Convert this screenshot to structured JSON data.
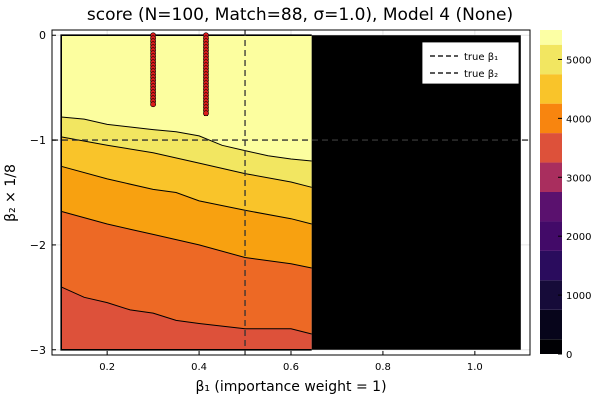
{
  "chart_data": {
    "type": "heatmap",
    "subtype": "filled-contour",
    "title": "score (N=100, Match=88, σ=1.0), Model 4 (None)",
    "xlabel": "β₁ (importance weight = 1)",
    "ylabel": "β₂ × 1/8",
    "xlim": [
      0.08,
      1.12
    ],
    "ylim": [
      -3.05,
      0.05
    ],
    "x_ticks": [
      0.2,
      0.4,
      0.6,
      0.8,
      1.0
    ],
    "x_tick_labels": [
      "0.2",
      "0.4",
      "0.6",
      "0.8",
      "1.0"
    ],
    "y_ticks": [
      0,
      -1,
      -2,
      -3
    ],
    "y_tick_labels": [
      "0",
      "−1",
      "−2",
      "−3"
    ],
    "grid": true,
    "data_extent": {
      "x": [
        0.1,
        1.1
      ],
      "y": [
        -3.0,
        0.0
      ]
    },
    "valid_region_x_max": 0.645,
    "contour_levels": [
      2750,
      3250,
      3750,
      4250,
      4750
    ],
    "contour_lines": [
      {
        "level": 4750,
        "points": [
          [
            0.1,
            -0.78
          ],
          [
            0.15,
            -0.8
          ],
          [
            0.2,
            -0.85
          ],
          [
            0.3,
            -0.9
          ],
          [
            0.35,
            -0.92
          ],
          [
            0.4,
            -0.96
          ],
          [
            0.45,
            -1.05
          ],
          [
            0.5,
            -1.1
          ],
          [
            0.55,
            -1.15
          ],
          [
            0.6,
            -1.18
          ],
          [
            0.645,
            -1.2
          ]
        ]
      },
      {
        "level": 4250,
        "points": [
          [
            0.1,
            -0.97
          ],
          [
            0.2,
            -1.05
          ],
          [
            0.3,
            -1.12
          ],
          [
            0.4,
            -1.22
          ],
          [
            0.45,
            -1.27
          ],
          [
            0.5,
            -1.32
          ],
          [
            0.6,
            -1.4
          ],
          [
            0.645,
            -1.45
          ]
        ]
      },
      {
        "level": 3750,
        "points": [
          [
            0.1,
            -1.25
          ],
          [
            0.2,
            -1.37
          ],
          [
            0.3,
            -1.47
          ],
          [
            0.35,
            -1.5
          ],
          [
            0.4,
            -1.58
          ],
          [
            0.5,
            -1.67
          ],
          [
            0.6,
            -1.75
          ],
          [
            0.645,
            -1.8
          ]
        ]
      },
      {
        "level": 3250,
        "points": [
          [
            0.1,
            -1.68
          ],
          [
            0.2,
            -1.8
          ],
          [
            0.25,
            -1.85
          ],
          [
            0.3,
            -1.9
          ],
          [
            0.4,
            -2.0
          ],
          [
            0.5,
            -2.12
          ],
          [
            0.6,
            -2.18
          ],
          [
            0.645,
            -2.22
          ]
        ]
      },
      {
        "level": 2750,
        "points": [
          [
            0.1,
            -2.4
          ],
          [
            0.15,
            -2.5
          ],
          [
            0.2,
            -2.55
          ],
          [
            0.25,
            -2.62
          ],
          [
            0.3,
            -2.65
          ],
          [
            0.35,
            -2.72
          ],
          [
            0.4,
            -2.75
          ],
          [
            0.5,
            -2.8
          ],
          [
            0.6,
            -2.8
          ],
          [
            0.645,
            -2.85
          ]
        ]
      }
    ],
    "fills": [
      {
        "between": [
          "top",
          4750
        ],
        "color": "#fcfe9f"
      },
      {
        "between": [
          4750,
          4250
        ],
        "color": "#f2e661"
      },
      {
        "between": [
          4250,
          3750
        ],
        "color": "#f9c42a"
      },
      {
        "between": [
          3750,
          3250
        ],
        "color": "#f8a110"
      },
      {
        "between": [
          3250,
          2750
        ],
        "color": "#ed6925"
      },
      {
        "between": [
          2750,
          "bottom"
        ],
        "color": "#dd513a"
      }
    ],
    "invalid_region_color": "#000000",
    "lollipops": [
      {
        "x": 0.3,
        "y_top": 0.0,
        "y_bottom": -0.67
      },
      {
        "x": 0.415,
        "y_top": 0.0,
        "y_bottom": -0.77
      }
    ],
    "lollipop_color": "#dd1c1c",
    "reference_lines": [
      {
        "orientation": "vertical",
        "value": 0.5,
        "label": "true β₁"
      },
      {
        "orientation": "horizontal",
        "value": -1.0,
        "label": "true β₂"
      }
    ],
    "legend": {
      "position": "top-right",
      "entries": [
        "true β₁",
        "true β₂"
      ]
    },
    "colorbar": {
      "min": 0,
      "max": 5500,
      "ticks": [
        0,
        1000,
        2000,
        3000,
        4000,
        5000
      ],
      "tick_labels": [
        "0",
        "1000",
        "2000",
        "3000",
        "4000",
        "5000"
      ],
      "bands": [
        {
          "from": 0,
          "to": 250,
          "color": "#000004"
        },
        {
          "from": 250,
          "to": 750,
          "color": "#07051b"
        },
        {
          "from": 750,
          "to": 1250,
          "color": "#160b39"
        },
        {
          "from": 1250,
          "to": 1750,
          "color": "#2a0c5d"
        },
        {
          "from": 1750,
          "to": 2250,
          "color": "#420a68"
        },
        {
          "from": 2250,
          "to": 2750,
          "color": "#5a116e"
        },
        {
          "from": 2750,
          "to": 3250,
          "color": "#a92e5e"
        },
        {
          "from": 3250,
          "to": 3750,
          "color": "#dd513a"
        },
        {
          "from": 3750,
          "to": 4250,
          "color": "#f8850f"
        },
        {
          "from": 4250,
          "to": 4750,
          "color": "#f9c42a"
        },
        {
          "from": 4750,
          "to": 5250,
          "color": "#f2e661"
        },
        {
          "from": 5250,
          "to": 5500,
          "color": "#fcffa4"
        }
      ]
    }
  }
}
